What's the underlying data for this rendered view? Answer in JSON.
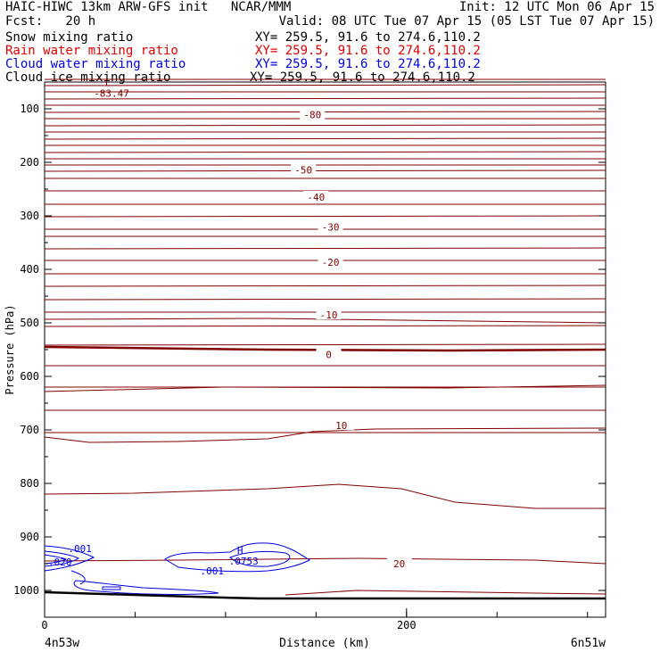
{
  "header": {
    "line1_left": "HAIC-HIWC 13km ARW-GFS init   NCAR/MMM",
    "line1_right": "Init: 12 UTC Mon 06 Apr 15",
    "line2_left": "Fcst:   20 h",
    "line2_right": "Valid: 08 UTC Tue 07 Apr 15 (05 LST Tue 07 Apr 15)",
    "fields": [
      {
        "name": "Snow mixing ratio",
        "xy": "XY= 259.5, 91.6 to 274.6,110.2",
        "color": "#000000"
      },
      {
        "name": "Rain water mixing ratio",
        "xy": "XY= 259.5, 91.6 to 274.6,110.2",
        "color": "#e00000"
      },
      {
        "name": "Cloud water mixing ratio",
        "xy": "XY= 259.5, 91.6 to 274.6,110.2",
        "color": "#0000e0"
      },
      {
        "name": "Cloud ice mixing ratio",
        "xy": "XY= 259.5, 91.6 to 274.6,110.2",
        "color": "#000000"
      }
    ]
  },
  "chart_data": {
    "type": "contour",
    "xlabel": "Distance (km)",
    "ylabel": "Pressure (hPa)",
    "x_ticks": [
      0,
      200
    ],
    "y_ticks": [
      100,
      200,
      300,
      400,
      500,
      600,
      700,
      800,
      900,
      1000
    ],
    "xlim": [
      0,
      310
    ],
    "ylim": [
      50,
      1050
    ],
    "endpoint_left": "4n53w",
    "endpoint_right": "6n51w",
    "temperature_color": "#800000",
    "freezing_level_label": "0",
    "temperature_contours": [
      {
        "label": "-80",
        "label_x": 148,
        "label_p": 111
      },
      {
        "label": "-50",
        "label_x": 143,
        "label_p": 214
      },
      {
        "label": "-40",
        "label_x": 150,
        "label_p": 265
      },
      {
        "label": "-30",
        "label_x": 158,
        "label_p": 321
      },
      {
        "label": "-20",
        "label_x": 158,
        "label_p": 387
      },
      {
        "label": "-10",
        "label_x": 157,
        "label_p": 485
      },
      {
        "label": "0",
        "label_x": 157,
        "label_p": 559
      },
      {
        "label": "10",
        "label_x": 164,
        "label_p": 692
      },
      {
        "label": "20",
        "label_x": 196,
        "label_p": 950
      }
    ],
    "extrema": [
      {
        "type": "L",
        "value": "-83.47",
        "x": 37,
        "p": 71,
        "color": "#800000"
      },
      {
        "type": "H",
        "value": ".0753",
        "x": 110,
        "p": 945,
        "color": "#0000e0"
      }
    ],
    "cloud_water_labels": [
      {
        "label": ".001",
        "x": 13,
        "p": 928
      },
      {
        "label": ".001",
        "x": 86,
        "p": 970
      },
      {
        "label": ".020",
        "x": 2,
        "p": 953
      }
    ]
  }
}
